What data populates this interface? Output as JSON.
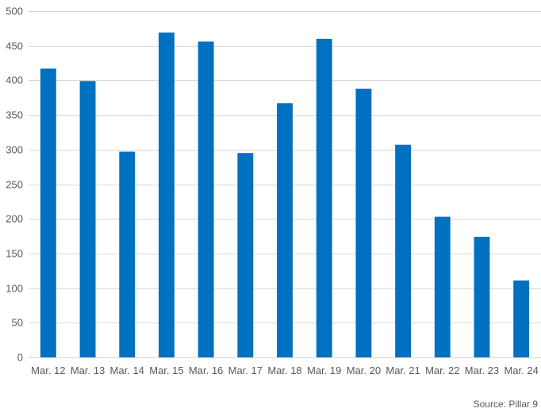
{
  "chart_data": {
    "type": "bar",
    "categories": [
      "Mar. 12",
      "Mar. 13",
      "Mar. 14",
      "Mar. 15",
      "Mar. 16",
      "Mar. 17",
      "Mar. 18",
      "Mar. 19",
      "Mar. 20",
      "Mar. 21",
      "Mar. 22",
      "Mar. 23",
      "Mar. 24"
    ],
    "values": [
      417,
      399,
      297,
      469,
      456,
      295,
      367,
      460,
      388,
      307,
      203,
      174,
      111
    ],
    "ylim": [
      0,
      500
    ],
    "yticks": [
      0,
      50,
      100,
      150,
      200,
      250,
      300,
      350,
      400,
      450,
      500
    ],
    "grid": true,
    "bar_color": "#0070C0",
    "grid_color": "#D9D9D9"
  },
  "source": "Source: Pillar 9"
}
